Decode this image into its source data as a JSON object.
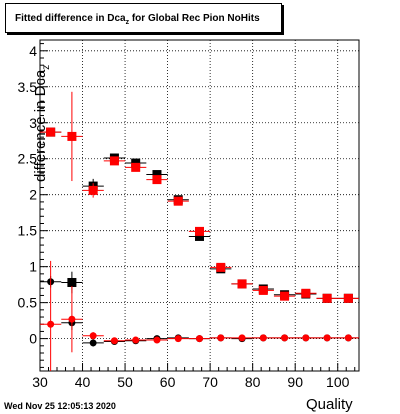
{
  "header": {
    "title_main": "Fitted difference in Dca",
    "title_sub": "z",
    "title_rest": " for Global Rec Pion NoHits"
  },
  "footer": {
    "timestamp": "Wed Nov 25 12:05:13 2020"
  },
  "axes": {
    "ylabel_main": "difference in Dca",
    "ylabel_sub": "z",
    "xlabel": "Quality"
  },
  "colors": {
    "series_black": "#000000",
    "series_red": "#ff0000",
    "grid": "#000000"
  },
  "chart_data": {
    "type": "scatter",
    "xlim": [
      30,
      105
    ],
    "ylim": [
      -0.45,
      4.15
    ],
    "grid": true,
    "xticks": [
      30,
      40,
      50,
      60,
      70,
      80,
      90,
      100
    ],
    "yticks": [
      0,
      0.5,
      1,
      1.5,
      2,
      2.5,
      3,
      3.5,
      4
    ],
    "xtick_labels": [
      "30",
      "40",
      "50",
      "60",
      "70",
      "80",
      "90",
      "100"
    ],
    "ytick_labels": [
      "0",
      "0.5",
      "1",
      "1.5",
      "2",
      "2.5",
      "3",
      "3.5",
      "4"
    ],
    "series": [
      {
        "color": "#000000",
        "marker": "square",
        "points": [
          {
            "x": 32.5,
            "y": 2.87,
            "err": 0.05
          },
          {
            "x": 37.5,
            "y": 0.78,
            "err": 0.15
          },
          {
            "x": 42.5,
            "y": 2.12,
            "err": 0.1
          },
          {
            "x": 47.5,
            "y": 2.51,
            "err": 0.04
          },
          {
            "x": 52.5,
            "y": 2.44,
            "err": 0.03
          },
          {
            "x": 57.5,
            "y": 2.28,
            "err": 0.03
          },
          {
            "x": 62.5,
            "y": 1.93,
            "err": 0.03
          },
          {
            "x": 67.5,
            "y": 1.42,
            "err": 0.03
          },
          {
            "x": 72.5,
            "y": 0.97,
            "err": 0.03
          },
          {
            "x": 77.5,
            "y": 0.76,
            "err": 0.03
          },
          {
            "x": 82.5,
            "y": 0.69,
            "err": 0.03
          },
          {
            "x": 87.5,
            "y": 0.61,
            "err": 0.03
          },
          {
            "x": 92.5,
            "y": 0.62,
            "err": 0.03
          },
          {
            "x": 97.5,
            "y": 0.56,
            "err": 0.02
          },
          {
            "x": 102.5,
            "y": 0.56,
            "err": 0.02
          }
        ]
      },
      {
        "color": "#ff0000",
        "marker": "square",
        "points": [
          {
            "x": 32.5,
            "y": 2.87,
            "err": 0.05
          },
          {
            "x": 37.5,
            "y": 2.81,
            "err": 0.62
          },
          {
            "x": 42.5,
            "y": 2.06,
            "err": 0.1
          },
          {
            "x": 47.5,
            "y": 2.47,
            "err": 0.04
          },
          {
            "x": 52.5,
            "y": 2.38,
            "err": 0.03
          },
          {
            "x": 57.5,
            "y": 2.21,
            "err": 0.03
          },
          {
            "x": 62.5,
            "y": 1.91,
            "err": 0.03
          },
          {
            "x": 67.5,
            "y": 1.49,
            "err": 0.03
          },
          {
            "x": 72.5,
            "y": 0.99,
            "err": 0.03
          },
          {
            "x": 77.5,
            "y": 0.76,
            "err": 0.03
          },
          {
            "x": 82.5,
            "y": 0.67,
            "err": 0.03
          },
          {
            "x": 87.5,
            "y": 0.59,
            "err": 0.03
          },
          {
            "x": 92.5,
            "y": 0.63,
            "err": 0.03
          },
          {
            "x": 97.5,
            "y": 0.56,
            "err": 0.02
          },
          {
            "x": 102.5,
            "y": 0.56,
            "err": 0.02
          }
        ]
      },
      {
        "color": "#000000",
        "marker": "circle",
        "points": [
          {
            "x": 32.5,
            "y": 0.79,
            "err": 0.08
          },
          {
            "x": 37.5,
            "y": 0.22,
            "err": 0.1
          },
          {
            "x": 42.5,
            "y": -0.06,
            "err": 0.05
          },
          {
            "x": 47.5,
            "y": -0.04,
            "err": 0.03
          },
          {
            "x": 52.5,
            "y": -0.03,
            "err": 0.02
          },
          {
            "x": 57.5,
            "y": 0.0,
            "err": 0.02
          },
          {
            "x": 62.5,
            "y": 0.01,
            "err": 0.02
          },
          {
            "x": 67.5,
            "y": 0.0,
            "err": 0.01
          },
          {
            "x": 72.5,
            "y": 0.01,
            "err": 0.01
          },
          {
            "x": 77.5,
            "y": 0.0,
            "err": 0.01
          },
          {
            "x": 82.5,
            "y": 0.01,
            "err": 0.01
          },
          {
            "x": 87.5,
            "y": 0.01,
            "err": 0.01
          },
          {
            "x": 92.5,
            "y": 0.01,
            "err": 0.01
          },
          {
            "x": 97.5,
            "y": 0.01,
            "err": 0.01
          },
          {
            "x": 102.5,
            "y": 0.01,
            "err": 0.01
          }
        ]
      },
      {
        "color": "#ff0000",
        "marker": "circle",
        "points": [
          {
            "x": 32.5,
            "y": 0.2,
            "err": 0.88
          },
          {
            "x": 37.5,
            "y": 0.27,
            "err": 0.46
          },
          {
            "x": 42.5,
            "y": 0.04,
            "err": 0.05
          },
          {
            "x": 47.5,
            "y": -0.03,
            "err": 0.03
          },
          {
            "x": 52.5,
            "y": -0.02,
            "err": 0.02
          },
          {
            "x": 57.5,
            "y": -0.02,
            "err": 0.02
          },
          {
            "x": 62.5,
            "y": 0.0,
            "err": 0.02
          },
          {
            "x": 67.5,
            "y": 0.0,
            "err": 0.01
          },
          {
            "x": 72.5,
            "y": 0.01,
            "err": 0.01
          },
          {
            "x": 77.5,
            "y": 0.01,
            "err": 0.01
          },
          {
            "x": 82.5,
            "y": 0.01,
            "err": 0.01
          },
          {
            "x": 87.5,
            "y": 0.01,
            "err": 0.01
          },
          {
            "x": 92.5,
            "y": 0.01,
            "err": 0.01
          },
          {
            "x": 97.5,
            "y": 0.01,
            "err": 0.01
          },
          {
            "x": 102.5,
            "y": 0.01,
            "err": 0.01
          }
        ]
      }
    ]
  }
}
